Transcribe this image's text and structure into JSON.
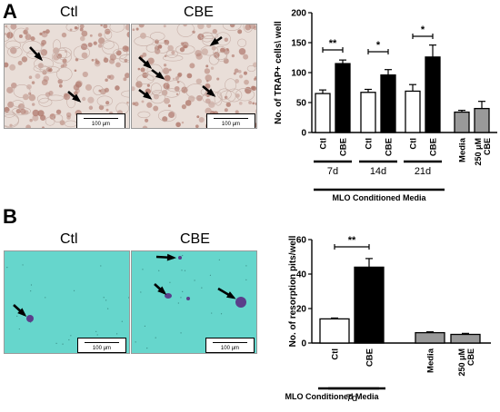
{
  "panels": {
    "A": {
      "letter": "A",
      "images": [
        {
          "label": "Ctl",
          "scalebar": "100 μm"
        },
        {
          "label": "CBE",
          "scalebar": "100 μm"
        }
      ]
    },
    "B": {
      "letter": "B",
      "images": [
        {
          "label": "Ctl",
          "scalebar": "100 μm"
        },
        {
          "label": "CBE",
          "scalebar": "100 μm"
        }
      ]
    }
  },
  "colors": {
    "ctl": "#ffffff",
    "cbe": "#000000",
    "media": "#999999",
    "stainA": "#b07a6e",
    "bgA": "#e9ded8",
    "bgB": "#66d6cc",
    "pitB": "#5a3e8a"
  },
  "chart_data": [
    {
      "type": "bar",
      "ylabel": "No. of TRAP+ cells\\ well",
      "ylim": [
        0,
        200
      ],
      "yticks": [
        0,
        50,
        100,
        150,
        200
      ],
      "bars": [
        {
          "label": "Ctl",
          "value": 65,
          "err": 6,
          "color": "ctl"
        },
        {
          "label": "CBE",
          "value": 115,
          "err": 6,
          "color": "cbe"
        },
        {
          "label": "Ctl",
          "value": 67,
          "err": 5,
          "color": "ctl"
        },
        {
          "label": "CBE",
          "value": 96,
          "err": 9,
          "color": "cbe"
        },
        {
          "label": "Ctl",
          "value": 69,
          "err": 11,
          "color": "ctl"
        },
        {
          "label": "CBE",
          "value": 126,
          "err": 20,
          "color": "cbe"
        },
        {
          "label": "Media",
          "value": 34,
          "err": 3,
          "color": "media"
        },
        {
          "label": "250 μM CBE",
          "value": 40,
          "err": 12,
          "color": "media"
        }
      ],
      "groups": [
        "7d",
        "14d",
        "21d"
      ],
      "group_title": "MLO Conditioned Media",
      "significance": [
        "**",
        "*",
        "*"
      ]
    },
    {
      "type": "bar",
      "ylabel": "No. of resorption pits/well",
      "ylim": [
        0,
        60
      ],
      "yticks": [
        0,
        20,
        40,
        60
      ],
      "bars": [
        {
          "label": "Ctl",
          "value": 14,
          "err": 0.5,
          "color": "ctl"
        },
        {
          "label": "CBE",
          "value": 44,
          "err": 5,
          "color": "cbe"
        },
        {
          "label": "Media",
          "value": 6,
          "err": 0.5,
          "color": "media"
        },
        {
          "label": "250 μM CBE",
          "value": 5,
          "err": 0.6,
          "color": "media"
        }
      ],
      "groups": [
        "7d"
      ],
      "group_title": "MLO Conditioned Media",
      "significance": [
        "**"
      ]
    }
  ]
}
